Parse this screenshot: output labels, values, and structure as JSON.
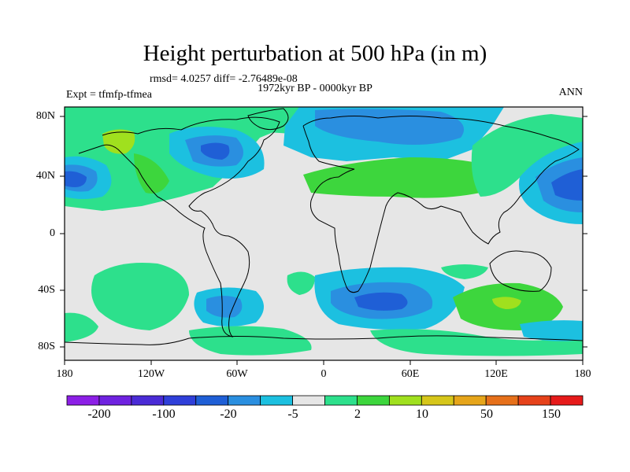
{
  "title": "Height perturbation at 500 hPa (in m)",
  "stats": "rmsd= 4.0257 diff= -2.76489e-08",
  "subtitle": "1972kyr BP - 0000kyr BP",
  "experiment": "Expt = tfmfp-tfmea",
  "season": "ANN",
  "lat_ticks": [
    "80N",
    "40N",
    "0",
    "40S",
    "80S"
  ],
  "lon_ticks": [
    "180",
    "120W",
    "60W",
    "0",
    "60E",
    "120E",
    "180"
  ],
  "colorbar": {
    "colors": [
      "#8c1fe6",
      "#6f22e0",
      "#4a2bd6",
      "#2f3fd9",
      "#1f5fd6",
      "#2a8fe0",
      "#1cc0e0",
      "#e6e6e6",
      "#2de08c",
      "#3dd63d",
      "#a0e01e",
      "#d6c61a",
      "#e6a51a",
      "#e6701a",
      "#e6421a",
      "#e61a1a"
    ],
    "labels": [
      "-200",
      "-100",
      "-20",
      "-5",
      "2",
      "10",
      "50",
      "150"
    ]
  },
  "map_layers": {
    "background": "#e6e6e6",
    "fill_colors": {
      "cyan": "#1cc0e0",
      "blue1": "#2a8fe0",
      "blue2": "#1f5fd6",
      "green": "#2de08c",
      "green2": "#3dd63d",
      "yellowgreen": "#a0e01e"
    }
  }
}
